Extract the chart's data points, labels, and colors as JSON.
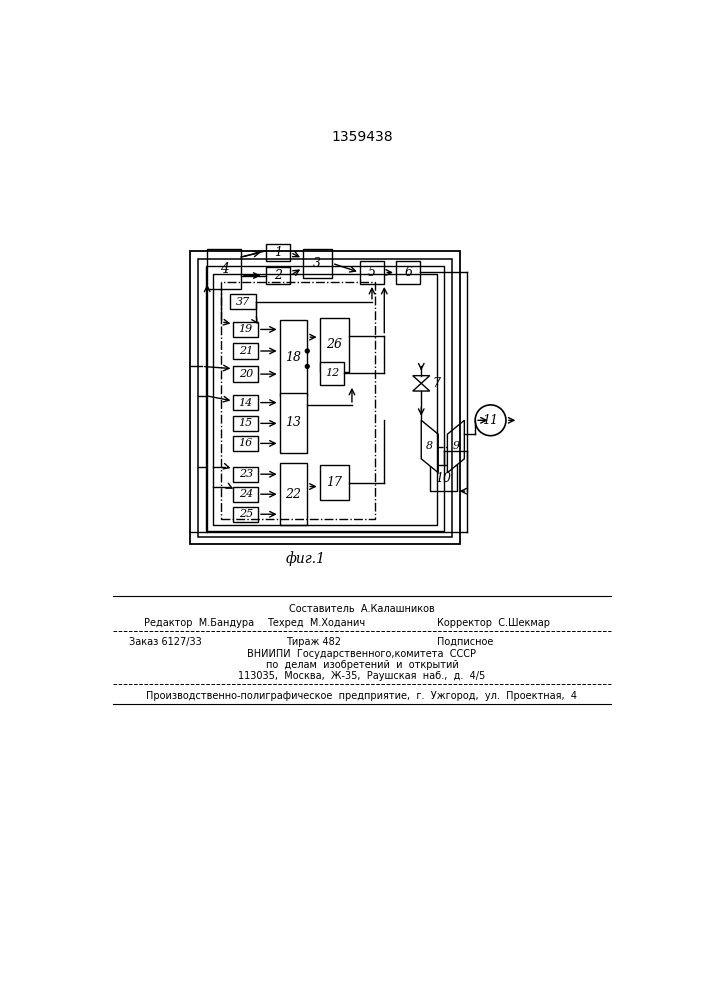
{
  "title": "1359438",
  "fig_label": "фиг.1",
  "bg_color": "#ffffff",
  "line_color": "#000000",
  "footnote": {
    "sostavitel": "Составитель  А.Калашников",
    "redaktor": "Редактор  М.Бандура",
    "tehred": "Техред  М.Ходанич",
    "korrektor": "Корректор  С.Шекмар",
    "zakaz": "Заказ 6127/33",
    "tirazh": "Тираж 482",
    "podpisnoe": "Подписное",
    "vniipи_1": "ВНИИПИ  Государственного,комитета  СССР",
    "vniipи_2": "по  делам  изобретений  и  открытий",
    "vniipи_3": "113035,  Москва,  Ж-35,  Раушская  наб.,  д.  4/5",
    "proizv": "Производственно-полиграфическое  предприятие,  г.  Ужгород,  ул.  Проектная,  4"
  }
}
